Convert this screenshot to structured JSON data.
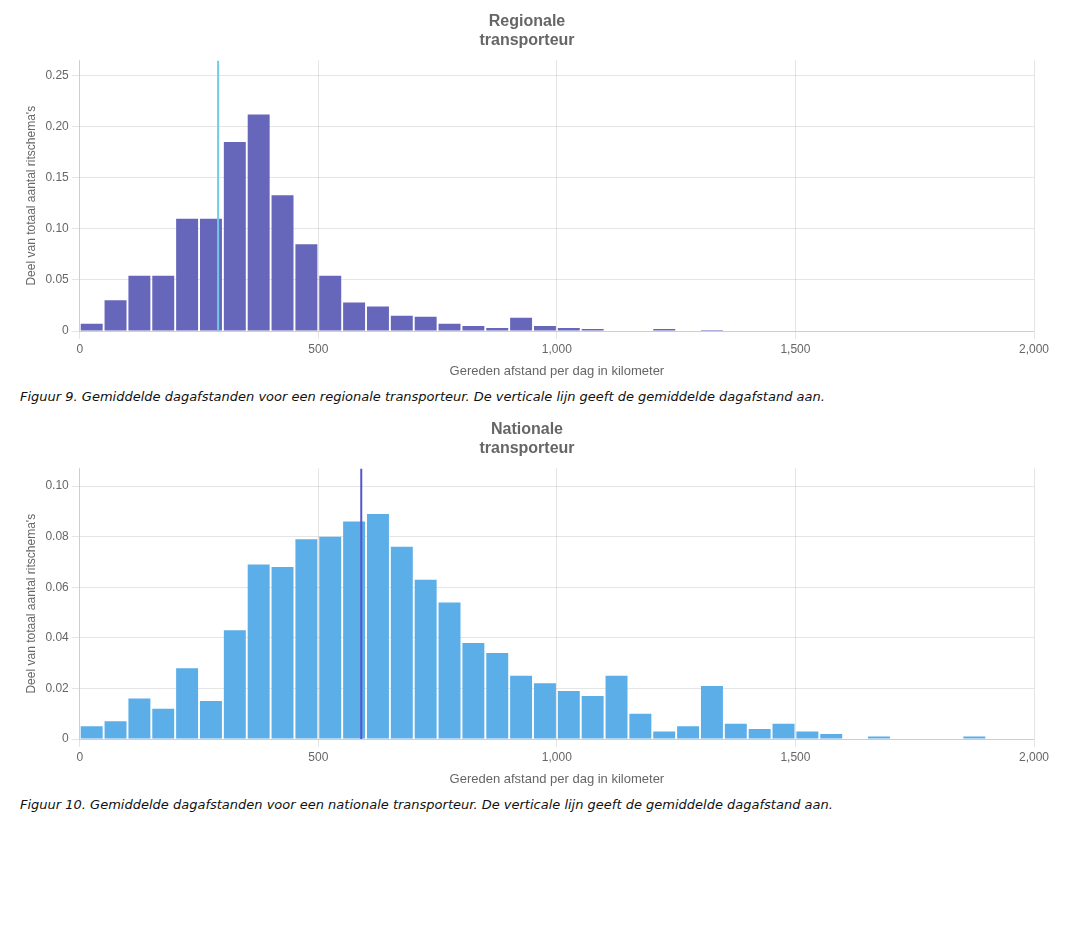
{
  "chart_data": [
    {
      "type": "histogram",
      "title": "Regionale\ntransporteur",
      "xlabel": "Gereden afstand per dag in kilometer",
      "ylabel": "Deel van totaal aantal ritschema's",
      "bins": [
        0,
        50,
        100,
        150,
        200,
        250,
        300,
        350,
        400,
        450,
        500,
        550,
        600,
        650,
        700,
        750,
        800,
        850,
        900,
        950,
        1000,
        1050,
        1100,
        1150,
        1200,
        1250,
        1300,
        1350,
        1400,
        1450,
        1500,
        1550,
        1600,
        1650,
        1700,
        1750,
        1800,
        1850,
        1900,
        1950,
        2000
      ],
      "values": [
        0.007,
        0.03,
        0.054,
        0.054,
        0.11,
        0.11,
        0.185,
        0.212,
        0.133,
        0.085,
        0.054,
        0.028,
        0.024,
        0.015,
        0.014,
        0.007,
        0.005,
        0.003,
        0.013,
        0.005,
        0.003,
        0.002,
        0.0,
        0.0,
        0.002,
        0.0,
        0.001,
        0.0,
        0.0,
        0.0,
        0.0,
        0.0,
        0.0,
        0.0,
        0.0,
        0.0,
        0.0,
        0.0,
        0.0,
        0.0
      ],
      "color": "#6666BB",
      "vlines": [
        {
          "x": 290,
          "color": "#74C8E8"
        }
      ],
      "xlim": [
        0,
        2000
      ],
      "ylim": [
        0,
        0.265
      ],
      "xticks": [
        0,
        500,
        {
          "value": 1000,
          "label": "1,000"
        },
        {
          "value": 1500,
          "label": "1,500"
        },
        {
          "value": 2000,
          "label": "2,000"
        }
      ],
      "yticks": [
        0,
        0.05,
        {
          "value": 0.1,
          "label": "0.10"
        },
        0.15,
        {
          "value": 0.2,
          "label": "0.20"
        },
        0.25
      ],
      "grid": true,
      "caption": "Figuur 9. Gemiddelde dagafstanden voor een regionale transporteur. De verticale lijn geeft de gemiddelde dagafstand aan."
    },
    {
      "type": "histogram",
      "title": "Nationale\ntransporteur",
      "xlabel": "Gereden afstand per dag in kilometer",
      "ylabel": "Deel van totaal aantal ritschema's",
      "bins": [
        0,
        50,
        100,
        150,
        200,
        250,
        300,
        350,
        400,
        450,
        500,
        550,
        600,
        650,
        700,
        750,
        800,
        850,
        900,
        950,
        1000,
        1050,
        1100,
        1150,
        1200,
        1250,
        1300,
        1350,
        1400,
        1450,
        1500,
        1550,
        1600,
        1650,
        1700,
        1750,
        1800,
        1850,
        1900,
        1950,
        2000
      ],
      "values": [
        0.005,
        0.007,
        0.016,
        0.012,
        0.028,
        0.015,
        0.043,
        0.069,
        0.068,
        0.079,
        0.08,
        0.086,
        0.089,
        0.076,
        0.063,
        0.054,
        0.038,
        0.034,
        0.025,
        0.022,
        0.019,
        0.017,
        0.025,
        0.01,
        0.003,
        0.005,
        0.021,
        0.006,
        0.004,
        0.006,
        0.003,
        0.002,
        0.0,
        0.001,
        0.0,
        0.0,
        0.0,
        0.001,
        0.0,
        0.0
      ],
      "color": "#5BAEE8",
      "vlines": [
        {
          "x": 590,
          "color": "#5555CC"
        }
      ],
      "xlim": [
        0,
        2000
      ],
      "ylim": [
        0,
        0.107
      ],
      "xticks": [
        0,
        500,
        {
          "value": 1000,
          "label": "1,000"
        },
        {
          "value": 1500,
          "label": "1,500"
        },
        {
          "value": 2000,
          "label": "2,000"
        }
      ],
      "yticks": [
        0,
        0.02,
        0.04,
        0.06,
        0.08,
        {
          "value": 0.1,
          "label": "0.10"
        }
      ],
      "grid": true,
      "caption": "Figuur 10. Gemiddelde dagafstanden voor een nationale transporteur. De verticale lijn geeft de gemiddelde dagafstand aan."
    }
  ]
}
